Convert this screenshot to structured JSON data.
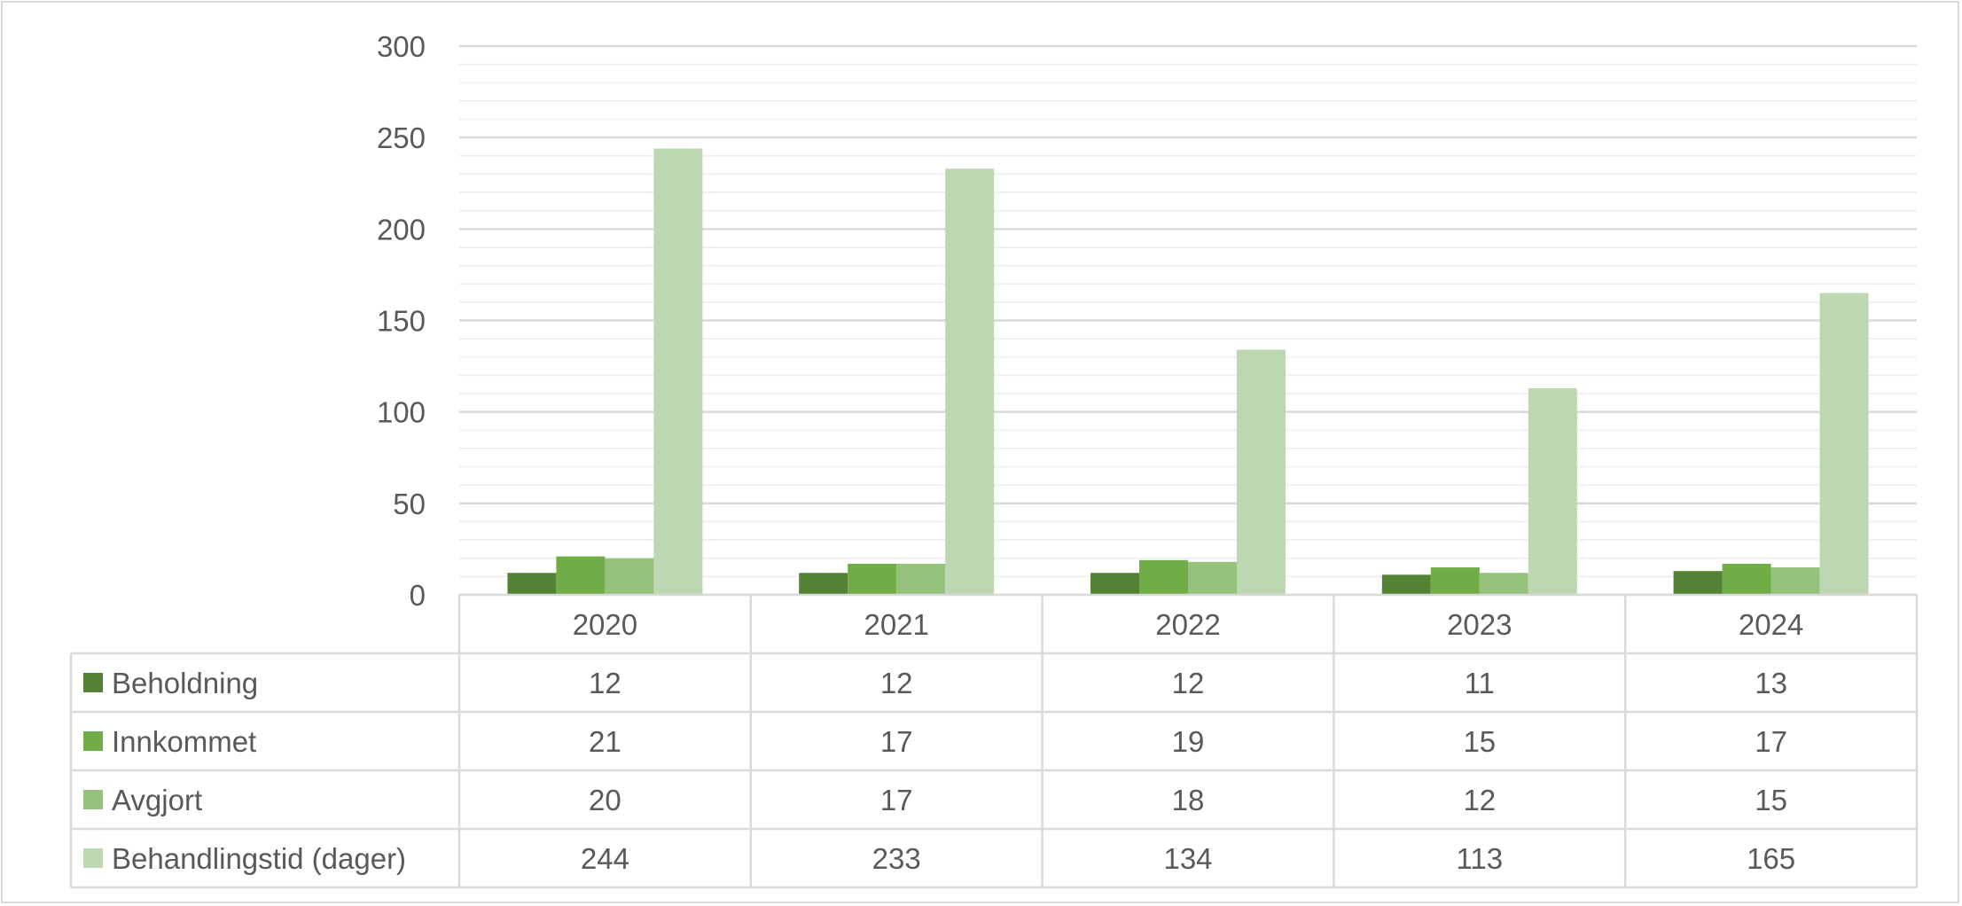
{
  "chart_data": {
    "type": "bar",
    "categories": [
      "2020",
      "2021",
      "2022",
      "2023",
      "2024"
    ],
    "series": [
      {
        "name": "Beholdning",
        "color": "#548235",
        "values": [
          12,
          12,
          12,
          11,
          13
        ]
      },
      {
        "name": "Innkommet",
        "color": "#70ad47",
        "values": [
          21,
          17,
          19,
          15,
          17
        ]
      },
      {
        "name": "Avgjort",
        "color": "#94c17b",
        "values": [
          20,
          17,
          18,
          12,
          15
        ]
      },
      {
        "name": "Behandlingstid (dager)",
        "color": "#bdd7b3",
        "values": [
          244,
          233,
          134,
          113,
          165
        ]
      }
    ],
    "ylim": [
      0,
      300
    ],
    "yticks": [
      0,
      50,
      100,
      150,
      200,
      250,
      300
    ],
    "minor_grid_step": 10,
    "grid": true,
    "legend": "data-table-left"
  }
}
